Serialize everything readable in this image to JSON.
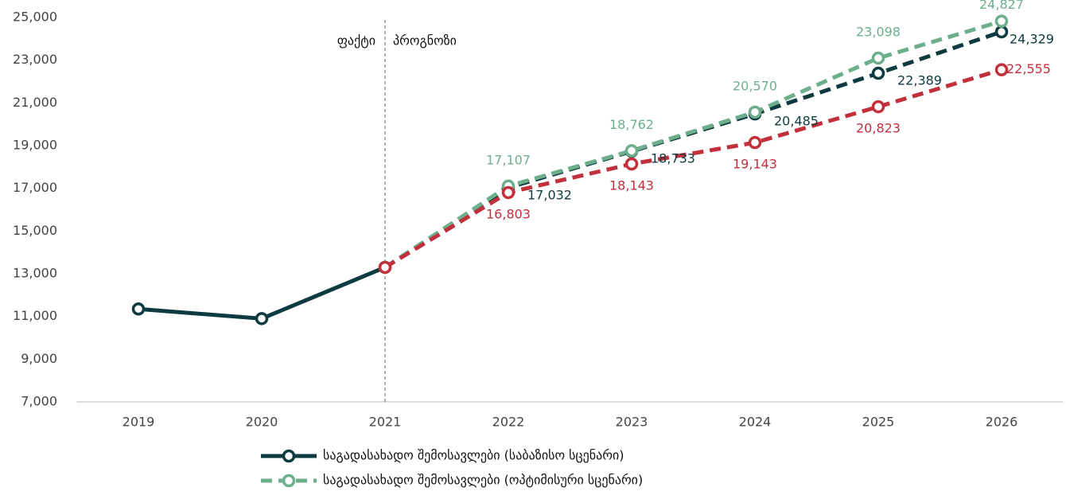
{
  "chart_data": {
    "type": "line",
    "categories": [
      "2019",
      "2020",
      "2021",
      "2022",
      "2023",
      "2024",
      "2025",
      "2026"
    ],
    "series": [
      {
        "name": "საგადასახადო შემოსავლები (საბაზისო სცენარი)",
        "color": "#0e3b40",
        "values": [
          11350,
          10900,
          13300,
          17032,
          18733,
          20485,
          22389,
          24329
        ],
        "value_labels": [
          null,
          null,
          null,
          "17,032",
          "18,733",
          "20,485",
          "22,389",
          "24,329"
        ]
      },
      {
        "name": "საგადასახადო შემოსავლები (ოპტიმისური სცენარი)",
        "color": "#6daf8c",
        "values": [
          null,
          null,
          13300,
          17107,
          18762,
          20570,
          23098,
          24827
        ],
        "value_labels": [
          null,
          null,
          null,
          "17,107",
          "18,762",
          "20,570",
          "23,098",
          "24,827"
        ]
      },
      {
        "color": "#c2303c",
        "values": [
          null,
          null,
          13300,
          16803,
          18143,
          19143,
          20823,
          22555
        ],
        "value_labels": [
          null,
          null,
          null,
          "16,803",
          "18,143",
          "19,143",
          "20,823",
          "22,555"
        ]
      }
    ],
    "ylim": [
      7000,
      25000
    ],
    "yticks": [
      {
        "value": 7000,
        "label": "7,000"
      },
      {
        "value": 9000,
        "label": "9,000"
      },
      {
        "value": 11000,
        "label": "11,000"
      },
      {
        "value": 13000,
        "label": "13,000"
      },
      {
        "value": 15000,
        "label": "15,000"
      },
      {
        "value": 17000,
        "label": "17,000"
      },
      {
        "value": 19000,
        "label": "19,000"
      },
      {
        "value": 21000,
        "label": "21,000"
      },
      {
        "value": 23000,
        "label": "23,000"
      },
      {
        "value": 25000,
        "label": "25,000"
      }
    ],
    "grid": false,
    "divider": {
      "category": "2021",
      "left_text": "ფაქტი",
      "right_text": "პროგნოზი"
    },
    "dashed_after_divider": true,
    "legend": "bottom"
  }
}
